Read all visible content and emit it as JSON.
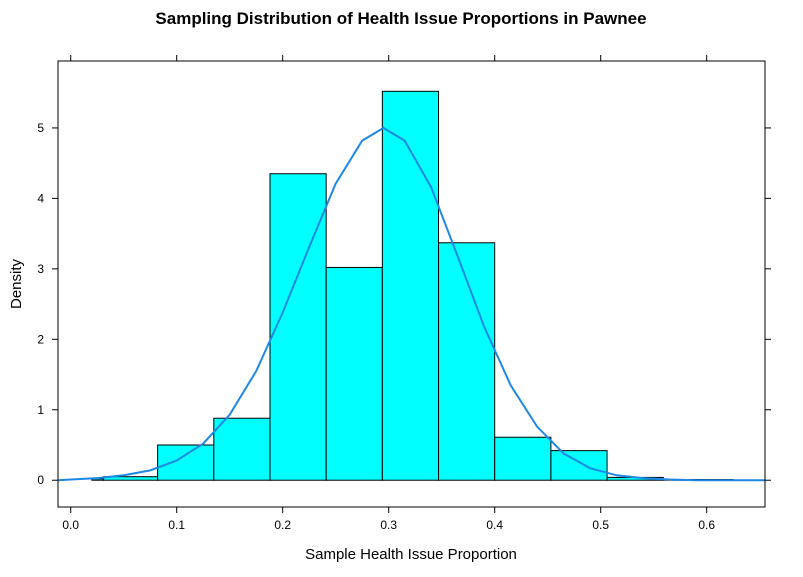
{
  "chart_data": {
    "type": "bar",
    "title": "Sampling Distribution of Health Issue Proportions in Pawnee",
    "xlabel": "Sample Health Issue Proportion",
    "ylabel": "Density",
    "xlim": [
      -0.012,
      0.655
    ],
    "ylim": [
      -0.38,
      5.95
    ],
    "xticks": [
      "0.0",
      "0.1",
      "0.2",
      "0.3",
      "0.4",
      "0.5",
      "0.6"
    ],
    "yticks": [
      "0",
      "1",
      "2",
      "3",
      "4",
      "5"
    ],
    "bins": [
      {
        "x0": 0.02,
        "x1": 0.031,
        "density": 0.02
      },
      {
        "x0": 0.031,
        "x1": 0.082,
        "density": 0.05
      },
      {
        "x0": 0.082,
        "x1": 0.135,
        "density": 0.5
      },
      {
        "x0": 0.135,
        "x1": 0.188,
        "density": 0.88
      },
      {
        "x0": 0.188,
        "x1": 0.241,
        "density": 4.35
      },
      {
        "x0": 0.241,
        "x1": 0.294,
        "density": 3.02
      },
      {
        "x0": 0.294,
        "x1": 0.347,
        "density": 5.52
      },
      {
        "x0": 0.347,
        "x1": 0.4,
        "density": 3.37
      },
      {
        "x0": 0.4,
        "x1": 0.453,
        "density": 0.61
      },
      {
        "x0": 0.453,
        "x1": 0.506,
        "density": 0.42
      },
      {
        "x0": 0.506,
        "x1": 0.559,
        "density": 0.04
      },
      {
        "x0": 0.559,
        "x1": 0.625,
        "density": 0.01
      }
    ],
    "density_curve": {
      "x": [
        -0.012,
        0.0,
        0.025,
        0.05,
        0.075,
        0.1,
        0.125,
        0.15,
        0.175,
        0.2,
        0.225,
        0.25,
        0.275,
        0.295,
        0.315,
        0.34,
        0.365,
        0.39,
        0.415,
        0.44,
        0.465,
        0.49,
        0.515,
        0.54,
        0.565,
        0.59,
        0.615,
        0.64,
        0.655
      ],
      "y": [
        0.0,
        0.01,
        0.03,
        0.07,
        0.14,
        0.28,
        0.52,
        0.93,
        1.55,
        2.38,
        3.31,
        4.21,
        4.82,
        5.0,
        4.82,
        4.16,
        3.18,
        2.18,
        1.35,
        0.76,
        0.38,
        0.17,
        0.07,
        0.03,
        0.01,
        0.0,
        0.0,
        0.0,
        0.0
      ]
    },
    "grid": false,
    "legend": "none",
    "colors": {
      "bar_fill": "#00ffff",
      "bar_edge": "#000000",
      "curve": "#1e88e5"
    }
  }
}
